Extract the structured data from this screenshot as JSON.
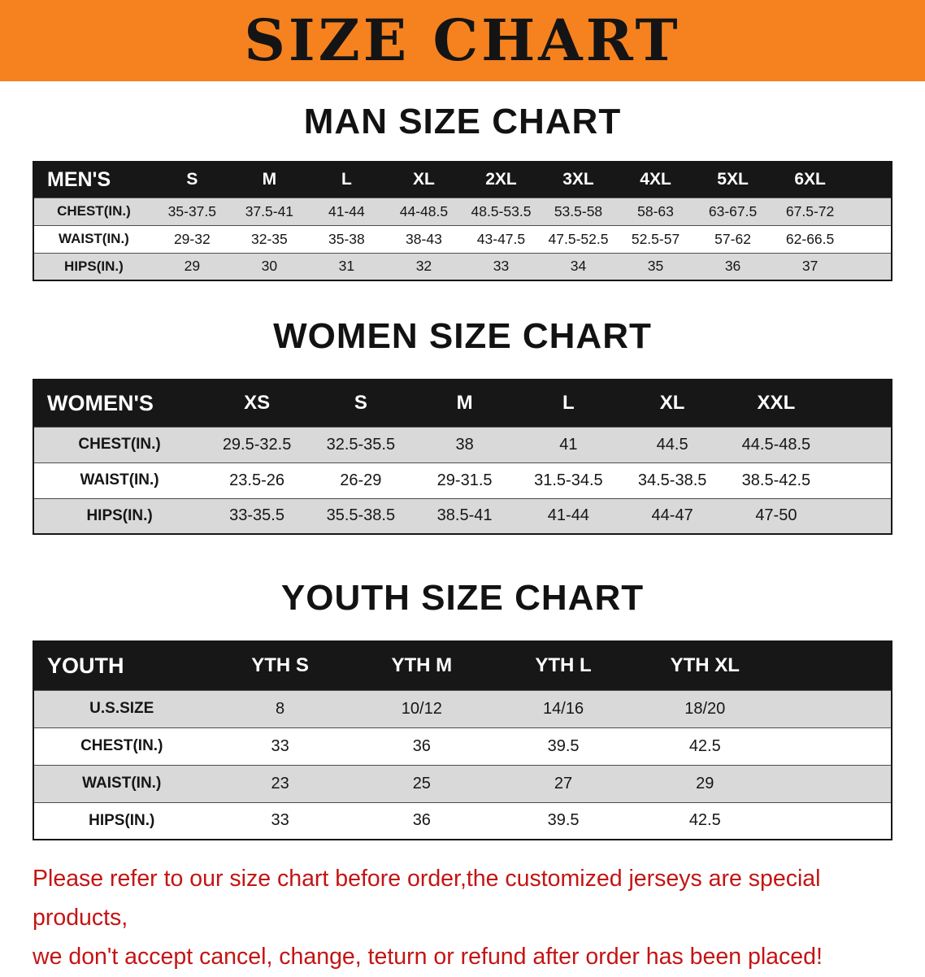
{
  "banner": {
    "title": "SIZE CHART"
  },
  "sections": [
    {
      "key": "men",
      "title": "MAN SIZE CHART",
      "columns": [
        "MEN'S",
        "S",
        "M",
        "L",
        "XL",
        "2XL",
        "3XL",
        "4XL",
        "5XL",
        "6XL"
      ],
      "rows": [
        [
          "CHEST(IN.)",
          "35-37.5",
          "37.5-41",
          "41-44",
          "44-48.5",
          "48.5-53.5",
          "53.5-58",
          "58-63",
          "63-67.5",
          "67.5-72"
        ],
        [
          "WAIST(IN.)",
          "29-32",
          "32-35",
          "35-38",
          "38-43",
          "43-47.5",
          "47.5-52.5",
          "52.5-57",
          "57-62",
          "62-66.5"
        ],
        [
          "HIPS(IN.)",
          "29",
          "30",
          "31",
          "32",
          "33",
          "34",
          "35",
          "36",
          "37"
        ]
      ]
    },
    {
      "key": "women",
      "title": "WOMEN SIZE CHART",
      "columns": [
        "WOMEN'S",
        "XS",
        "S",
        "M",
        "L",
        "XL",
        "XXL"
      ],
      "rows": [
        [
          "CHEST(IN.)",
          "29.5-32.5",
          "32.5-35.5",
          "38",
          "41",
          "44.5",
          "44.5-48.5"
        ],
        [
          "WAIST(IN.)",
          "23.5-26",
          "26-29",
          "29-31.5",
          "31.5-34.5",
          "34.5-38.5",
          "38.5-42.5"
        ],
        [
          "HIPS(IN.)",
          "33-35.5",
          "35.5-38.5",
          "38.5-41",
          "41-44",
          "44-47",
          "47-50"
        ]
      ]
    },
    {
      "key": "youth",
      "title": "YOUTH SIZE CHART",
      "columns": [
        "YOUTH",
        "YTH S",
        "YTH M",
        "YTH L",
        "YTH XL"
      ],
      "rows": [
        [
          "U.S.SIZE",
          "8",
          "10/12",
          "14/16",
          "18/20"
        ],
        [
          "CHEST(IN.)",
          "33",
          "36",
          "39.5",
          "42.5"
        ],
        [
          "WAIST(IN.)",
          "23",
          "25",
          "27",
          "29"
        ],
        [
          "HIPS(IN.)",
          "33",
          "36",
          "39.5",
          "42.5"
        ]
      ]
    }
  ],
  "footer": {
    "lines": [
      "Please refer to our size chart before order,the customized jerseys are special products,",
      "we don't accept cancel, change, teturn or refund after order has been placed!"
    ]
  },
  "theme": {
    "banner_bg": "#f5821f",
    "banner_text": "#141414",
    "table_header_bg": "#171717",
    "table_header_text": "#ffffff",
    "row_stripe_bg": "#d9d9d9",
    "row_plain_bg": "#ffffff",
    "notice_text": "#c41414"
  }
}
